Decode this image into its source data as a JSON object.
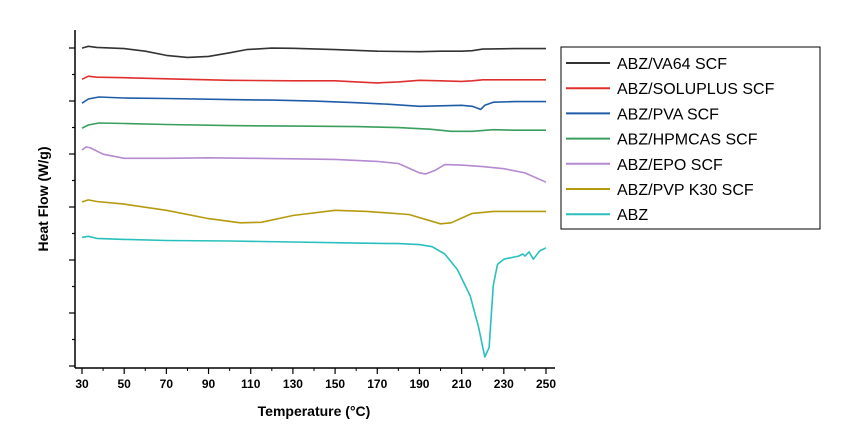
{
  "chart_data": {
    "type": "line",
    "xlabel": "Temperature (°C)",
    "ylabel": "Heat Flow (W/g)",
    "xlim": [
      28,
      251
    ],
    "xticks": [
      30,
      50,
      70,
      90,
      110,
      130,
      150,
      170,
      190,
      210,
      230,
      250
    ],
    "y_tick_labels_shown": false,
    "grid": false,
    "legend_position": "right",
    "series": [
      {
        "name": "ABZ/VA64 SCF",
        "color": "#333333",
        "points": [
          [
            30,
            2.0
          ],
          [
            33,
            0.3
          ],
          [
            37,
            1.3
          ],
          [
            50,
            2.5
          ],
          [
            60,
            5.0
          ],
          [
            70,
            9.0
          ],
          [
            80,
            11.0
          ],
          [
            90,
            10.0
          ],
          [
            100,
            6.5
          ],
          [
            108,
            3.5
          ],
          [
            120,
            2.0
          ],
          [
            130,
            2.2
          ],
          [
            150,
            3.5
          ],
          [
            170,
            5.0
          ],
          [
            190,
            5.5
          ],
          [
            200,
            5.0
          ],
          [
            210,
            5.0
          ],
          [
            215,
            4.5
          ],
          [
            220,
            3.0
          ],
          [
            235,
            2.5
          ],
          [
            250,
            2.5
          ]
        ]
      },
      {
        "name": "ABZ/SOLUPLUS SCF",
        "color": "#e0302e",
        "points": [
          [
            30,
            32.0
          ],
          [
            33,
            29.0
          ],
          [
            37,
            30.0
          ],
          [
            50,
            30.5
          ],
          [
            70,
            31.5
          ],
          [
            100,
            33.0
          ],
          [
            130,
            33.5
          ],
          [
            150,
            33.5
          ],
          [
            165,
            35.0
          ],
          [
            170,
            35.5
          ],
          [
            180,
            34.5
          ],
          [
            190,
            33.0
          ],
          [
            200,
            33.5
          ],
          [
            210,
            34.0
          ],
          [
            215,
            33.5
          ],
          [
            220,
            32.5
          ],
          [
            235,
            32.5
          ],
          [
            250,
            32.5
          ]
        ]
      },
      {
        "name": "ABZ/PVA SCF",
        "color": "#1f5ca8",
        "points": [
          [
            30,
            55.0
          ],
          [
            33,
            51.0
          ],
          [
            38,
            49.0
          ],
          [
            50,
            50.0
          ],
          [
            70,
            50.5
          ],
          [
            100,
            51.5
          ],
          [
            120,
            52.0
          ],
          [
            140,
            53.0
          ],
          [
            160,
            54.5
          ],
          [
            175,
            56.0
          ],
          [
            190,
            58.0
          ],
          [
            200,
            57.5
          ],
          [
            210,
            57.0
          ],
          [
            215,
            58.0
          ],
          [
            219,
            61.0
          ],
          [
            221,
            57.0
          ],
          [
            225,
            54.0
          ],
          [
            235,
            53.5
          ],
          [
            250,
            53.5
          ]
        ]
      },
      {
        "name": "ABZ/HPMCAS SCF",
        "color": "#3a9e5c",
        "points": [
          [
            30,
            79.0
          ],
          [
            33,
            76.0
          ],
          [
            38,
            74.0
          ],
          [
            50,
            74.5
          ],
          [
            70,
            75.5
          ],
          [
            100,
            76.5
          ],
          [
            130,
            77.0
          ],
          [
            160,
            77.5
          ],
          [
            180,
            78.5
          ],
          [
            195,
            80.0
          ],
          [
            205,
            82.0
          ],
          [
            215,
            82.0
          ],
          [
            225,
            80.5
          ],
          [
            235,
            81.0
          ],
          [
            250,
            81.0
          ]
        ]
      },
      {
        "name": "ABZ/EPO SCF",
        "color": "#b58ad0",
        "points": [
          [
            30,
            100.0
          ],
          [
            32,
            97.0
          ],
          [
            34,
            98.0
          ],
          [
            40,
            104.0
          ],
          [
            50,
            108.0
          ],
          [
            70,
            108.0
          ],
          [
            90,
            107.5
          ],
          [
            110,
            108.0
          ],
          [
            130,
            108.5
          ],
          [
            150,
            109.0
          ],
          [
            170,
            111.0
          ],
          [
            180,
            113.0
          ],
          [
            190,
            122.0
          ],
          [
            193,
            123.0
          ],
          [
            197,
            120.0
          ],
          [
            202,
            114.0
          ],
          [
            210,
            114.5
          ],
          [
            220,
            116.0
          ],
          [
            230,
            118.0
          ],
          [
            240,
            122.0
          ],
          [
            250,
            131.0
          ]
        ]
      },
      {
        "name": "ABZ/PVP K30 SCF",
        "color": "#b59a10",
        "points": [
          [
            30,
            150.0
          ],
          [
            33,
            148.0
          ],
          [
            37,
            149.5
          ],
          [
            50,
            152.0
          ],
          [
            70,
            158.0
          ],
          [
            90,
            166.0
          ],
          [
            105,
            170.0
          ],
          [
            115,
            169.5
          ],
          [
            130,
            163.0
          ],
          [
            150,
            158.0
          ],
          [
            165,
            159.0
          ],
          [
            185,
            162.0
          ],
          [
            195,
            168.0
          ],
          [
            200,
            171.0
          ],
          [
            205,
            170.0
          ],
          [
            215,
            161.0
          ],
          [
            225,
            159.0
          ],
          [
            235,
            159.0
          ],
          [
            250,
            159.0
          ]
        ]
      },
      {
        "name": "ABZ",
        "color": "#2abfbf",
        "points": [
          [
            30,
            184.0
          ],
          [
            33,
            183.0
          ],
          [
            37,
            185.0
          ],
          [
            50,
            186.0
          ],
          [
            70,
            187.0
          ],
          [
            100,
            187.5
          ],
          [
            130,
            188.5
          ],
          [
            160,
            189.5
          ],
          [
            180,
            190.0
          ],
          [
            190,
            191.0
          ],
          [
            196,
            193.0
          ],
          [
            202,
            200.0
          ],
          [
            208,
            215.0
          ],
          [
            214,
            240.0
          ],
          [
            218,
            270.0
          ],
          [
            221,
            299.0
          ],
          [
            223,
            290.0
          ],
          [
            225,
            230.0
          ],
          [
            227,
            210.0
          ],
          [
            230,
            205.0
          ],
          [
            237,
            202.0
          ],
          [
            239,
            200.0
          ],
          [
            240,
            202.0
          ],
          [
            242,
            198.0
          ],
          [
            244,
            205.0
          ],
          [
            247,
            197.0
          ],
          [
            250,
            194.0
          ]
        ]
      }
    ]
  }
}
